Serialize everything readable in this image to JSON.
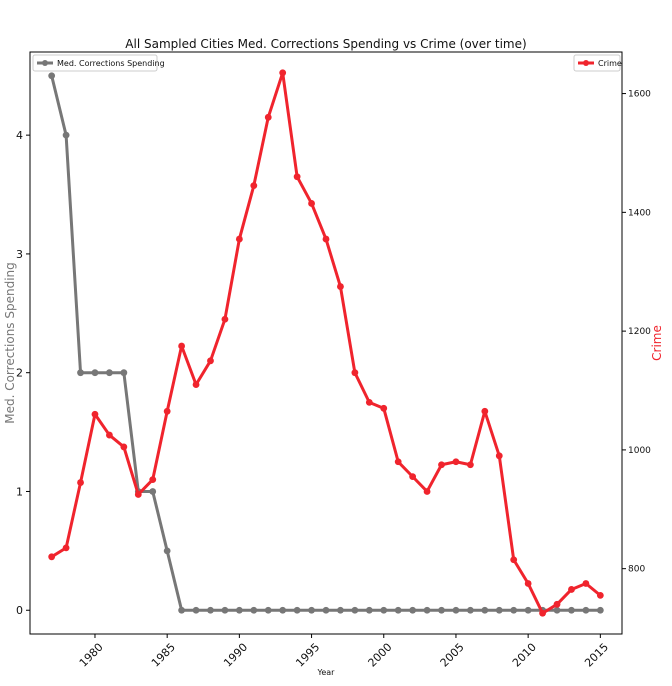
{
  "chart_data": {
    "type": "line",
    "title": "All Sampled Cities Med. Corrections Spending vs Crime (over time)",
    "xlabel": "Year",
    "ylabel_left": "Med. Corrections Spending",
    "ylabel_right": "Crime",
    "xlim": [
      1975.5,
      2016.5
    ],
    "ylim_left": [
      -0.2,
      4.7
    ],
    "ylim_right": [
      690,
      1670
    ],
    "x_ticks": [
      "1980",
      "1985",
      "1990",
      "1995",
      "2000",
      "2005",
      "2010",
      "2015"
    ],
    "y_ticks_left": [
      "0",
      "1",
      "2",
      "3",
      "4"
    ],
    "y_ticks_right": [
      "800",
      "1000",
      "1200",
      "1400",
      "1600"
    ],
    "grid": false,
    "legends": {
      "left": "top-left",
      "right": "top-right"
    },
    "colors": {
      "spending": "#777777",
      "crime": "#f0242d"
    },
    "series": [
      {
        "name": "Med. Corrections Spending",
        "axis": "left",
        "x": [
          1977,
          1978,
          1979,
          1980,
          1981,
          1982,
          1983,
          1984,
          1985,
          1986,
          1987,
          1988,
          1989,
          1990,
          1991,
          1992,
          1993,
          1994,
          1995,
          1996,
          1997,
          1998,
          1999,
          2000,
          2001,
          2002,
          2003,
          2004,
          2005,
          2006,
          2007,
          2008,
          2009,
          2010,
          2011,
          2012,
          2013,
          2014,
          2015
        ],
        "values": [
          4.5,
          4.0,
          2.0,
          2.0,
          2.0,
          2.0,
          1.0,
          1.0,
          0.5,
          0,
          0,
          0,
          0,
          0,
          0,
          0,
          0,
          0,
          0,
          0,
          0,
          0,
          0,
          0,
          0,
          0,
          0,
          0,
          0,
          0,
          0,
          0,
          0,
          0,
          0,
          0,
          0,
          0,
          0
        ]
      },
      {
        "name": "Crime",
        "axis": "right",
        "x": [
          1977,
          1978,
          1979,
          1980,
          1981,
          1982,
          1983,
          1984,
          1985,
          1986,
          1987,
          1988,
          1989,
          1990,
          1991,
          1992,
          1993,
          1994,
          1995,
          1996,
          1997,
          1998,
          1999,
          2000,
          2001,
          2002,
          2003,
          2004,
          2005,
          2006,
          2007,
          2008,
          2009,
          2010,
          2011,
          2012,
          2013,
          2014,
          2015
        ],
        "values": [
          820,
          835,
          945,
          1060,
          1025,
          1005,
          925,
          950,
          1065,
          1175,
          1110,
          1150,
          1220,
          1355,
          1445,
          1560,
          1635,
          1460,
          1415,
          1355,
          1275,
          1130,
          1080,
          1070,
          980,
          955,
          930,
          975,
          980,
          975,
          1065,
          990,
          815,
          775,
          725,
          740,
          765,
          775,
          755
        ]
      }
    ]
  }
}
